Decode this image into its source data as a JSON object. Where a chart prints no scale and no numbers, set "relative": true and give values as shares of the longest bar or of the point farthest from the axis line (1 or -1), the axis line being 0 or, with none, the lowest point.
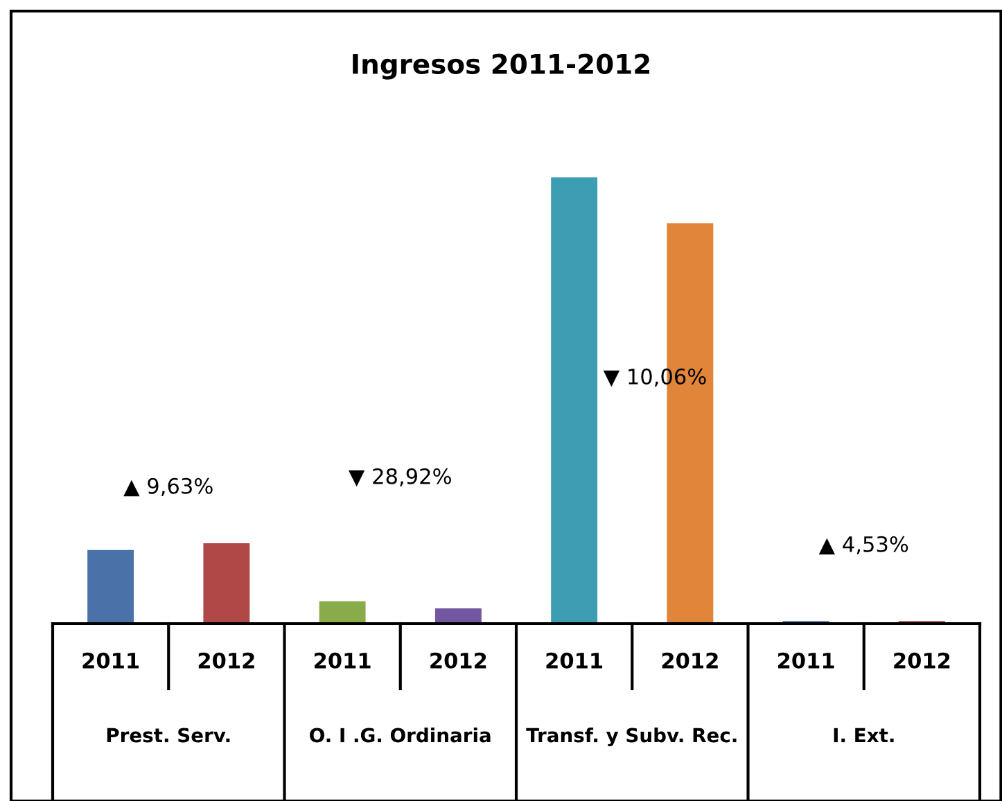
{
  "chart_data": {
    "type": "bar",
    "title": "Ingresos 2011-2012",
    "relative": true,
    "categories": [
      "2011",
      "2012",
      "2011",
      "2012",
      "2011",
      "2012",
      "2011",
      "2012"
    ],
    "values": [
      0.165,
      0.18,
      0.05,
      0.034,
      1,
      0.897,
      0.006,
      0.006
    ],
    "colors": [
      "#4a71a8",
      "#b04848",
      "#8aab4a",
      "#7356a0",
      "#3d9db3",
      "#e0853a",
      "#4a71a8",
      "#b04848"
    ],
    "annotations": [
      "▲ 9,63%",
      "▼ 28,92%",
      "▼ 10,06%",
      "▲ 4,53%",
      "Prest. Serv.",
      "O. I .G. Ordinaria",
      "Transf. y Subv. Rec.",
      "I. Ext."
    ],
    "legend": false
  }
}
